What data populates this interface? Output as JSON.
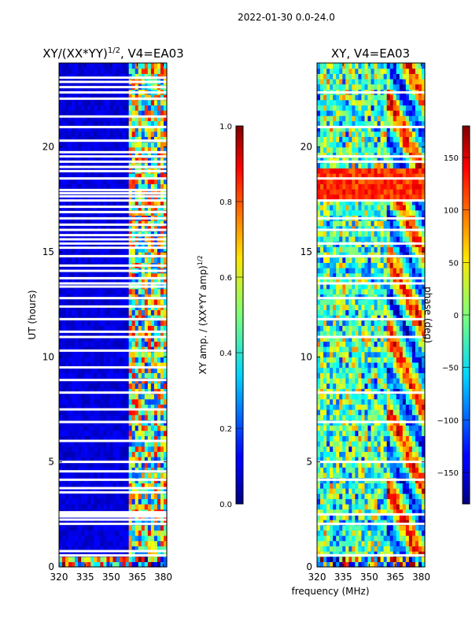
{
  "figure": {
    "suptitle": "2022-01-30 0.0-24.0",
    "shared_xlabel": "frequency (MHz)"
  },
  "chart_data": [
    {
      "type": "heatmap",
      "id": "amp",
      "title_main": "XY/(XX*YY)",
      "title_sup": "1/2",
      "title_tail": ", V4=EA03",
      "ylabel": "UT (hours)",
      "xlim": [
        320,
        382
      ],
      "ylim": [
        0,
        24
      ],
      "xticks": [
        320,
        335,
        350,
        365,
        380
      ],
      "yticks": [
        0,
        5,
        10,
        15,
        20
      ],
      "flagged_from_mhz": 361,
      "colorbar": {
        "label_main": "XY amp. / (XX*YY amp)",
        "label_sup": "1/2",
        "range": [
          0.0,
          1.0
        ],
        "ticks": [
          "0.0",
          "0.2",
          "0.4",
          "0.6",
          "0.8",
          "1.0"
        ],
        "tick_values": [
          0.0,
          0.2,
          0.4,
          0.6,
          0.8,
          1.0
        ],
        "colormap": "jet"
      },
      "blank_hours": [
        0.55,
        0.75,
        2.05,
        2.25,
        2.4,
        2.5,
        2.6,
        3.55,
        3.75,
        4.15,
        4.55,
        5.0,
        6.0,
        6.9,
        7.5,
        8.3,
        8.9,
        9.5,
        10.3,
        10.95,
        11.2,
        11.8,
        12.4,
        12.8,
        13.35,
        13.5,
        13.75,
        14.1,
        14.35,
        14.8,
        15.2,
        15.4,
        15.6,
        15.8,
        16.05,
        16.3,
        16.6,
        16.9,
        17.15,
        17.45,
        17.65,
        17.8,
        17.95,
        18.5,
        18.85,
        19.05,
        19.3,
        19.55,
        19.75,
        20.3,
        20.95,
        21.45,
        22.3,
        22.6,
        22.85,
        23.1,
        23.3
      ]
    },
    {
      "type": "heatmap",
      "id": "phase",
      "title_main": "XY, V4=EA03",
      "xlim": [
        320,
        382
      ],
      "ylim": [
        0,
        24
      ],
      "xticks": [
        320,
        335,
        350,
        365,
        380
      ],
      "yticks": [
        0,
        5,
        10,
        15,
        20
      ],
      "colorbar": {
        "label_main": "phase (deg)",
        "range": [
          -180,
          180
        ],
        "ticks": [
          "−150",
          "−100",
          "−50",
          "0",
          "50",
          "100",
          "150"
        ],
        "tick_values": [
          -150,
          -100,
          -50,
          0,
          50,
          100,
          150
        ],
        "colormap": "jet"
      },
      "blank_hours": [
        0.55,
        2.05,
        2.5,
        4.15,
        5.0,
        6.9,
        8.3,
        10.95,
        11.8,
        12.8,
        13.5,
        13.75,
        14.8,
        15.4,
        16.05,
        16.6,
        17.45,
        18.5,
        19.3,
        19.55,
        20.95,
        22.6
      ]
    }
  ]
}
